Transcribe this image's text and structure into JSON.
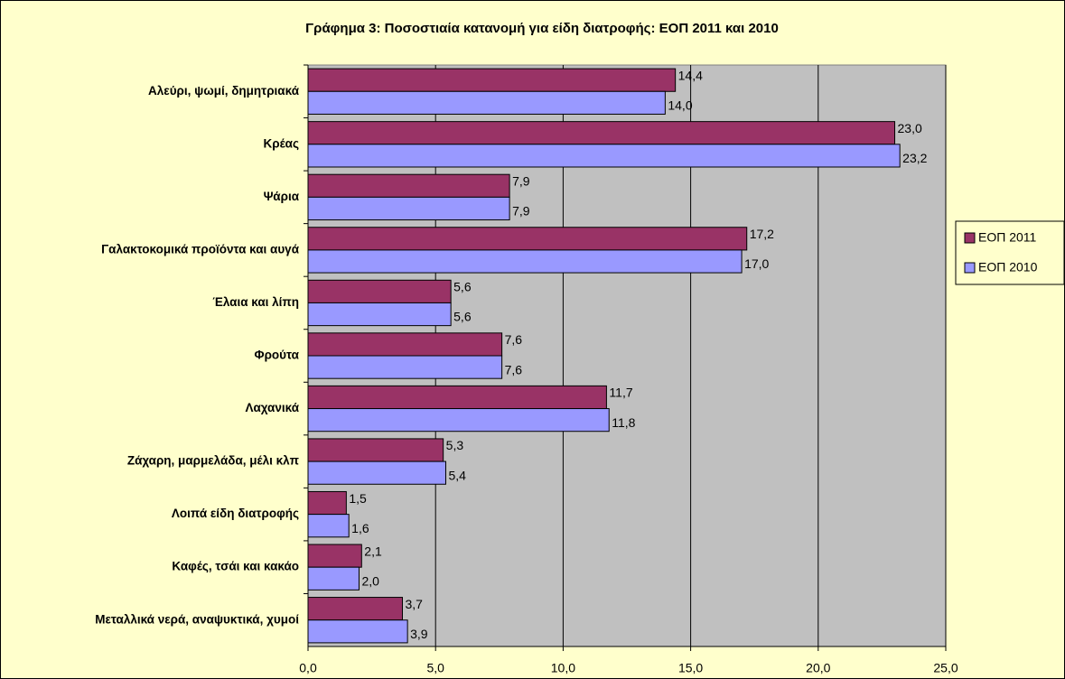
{
  "chart_data": {
    "type": "bar",
    "orientation": "horizontal",
    "title": "Γράφημα 3: Ποσοστιαία κατανομή για είδη διατροφής: ΕΟΠ 2011 και 2010",
    "categories": [
      "Αλεύρι, ψωμί, δημητριακά",
      "Κρέας",
      "Ψάρια",
      "Γαλακτοκομικά προϊόντα και αυγά",
      "Έλαια και λίπη",
      "Φρούτα",
      "Λαχανικά",
      "Ζάχαρη, μαρμελάδα, μέλι κλπ",
      "Λοιπά είδη διατροφής",
      "Καφές, τσάι και κακάο",
      "Μεταλλικά νερά, αναψυκτικά, χυμοί"
    ],
    "series": [
      {
        "name": "ΕΟΠ 2011",
        "color": "#993366",
        "values": [
          14.4,
          23.0,
          7.9,
          17.2,
          5.6,
          7.6,
          11.7,
          5.3,
          1.5,
          2.1,
          3.7
        ],
        "value_labels": [
          "14,4",
          "23,0",
          "7,9",
          "17,2",
          "5,6",
          "7,6",
          "11,7",
          "5,3",
          "1,5",
          "2,1",
          "3,7"
        ]
      },
      {
        "name": "ΕΟΠ 2010",
        "color": "#9999ff",
        "values": [
          14.0,
          23.2,
          7.9,
          17.0,
          5.6,
          7.6,
          11.8,
          5.4,
          1.6,
          2.0,
          3.9
        ],
        "value_labels": [
          "14,0",
          "23,2",
          "7,9",
          "17,0",
          "5,6",
          "7,6",
          "11,8",
          "5,4",
          "1,6",
          "2,0",
          "3,9"
        ]
      }
    ],
    "xlim": [
      0,
      25
    ],
    "xticks": [
      {
        "value": 0,
        "label": "0,0"
      },
      {
        "value": 5,
        "label": "5,0"
      },
      {
        "value": 10,
        "label": "10,0"
      },
      {
        "value": 15,
        "label": "15,0"
      },
      {
        "value": 20,
        "label": "20,0"
      },
      {
        "value": 25,
        "label": "25,0"
      }
    ],
    "grid": true,
    "legend": "right"
  }
}
